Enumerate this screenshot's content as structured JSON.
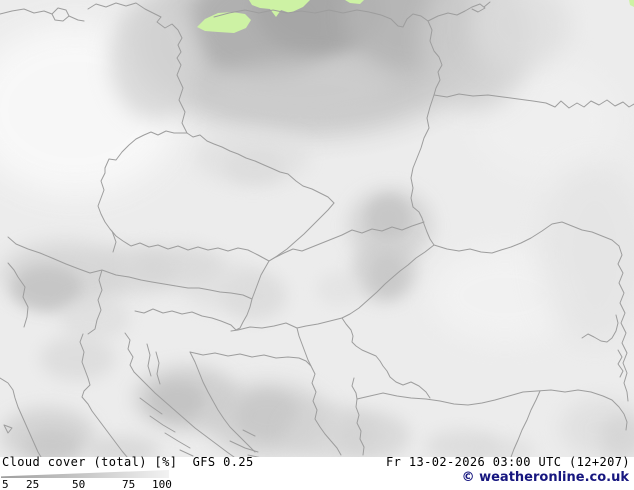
{
  "legend": {
    "title": "Cloud cover (total) [%]",
    "model": "GFS 0.25",
    "ticks": [
      "5",
      "25",
      "50",
      "75",
      "100"
    ]
  },
  "footer": {
    "datetime": "Fr 13-02-2026 03:00 UTC (12+207)",
    "copyright": "© weatheronline.co.uk"
  },
  "colors": {
    "map_base": "#ececec",
    "border": "#9d9d9d",
    "precip_green": "#cdf2a4",
    "cloud_dark": "#a6a6a6",
    "legend_dark": "#9e9e9e",
    "legend_light": "#f2f2f2",
    "copyright_navy": "#16167f"
  }
}
